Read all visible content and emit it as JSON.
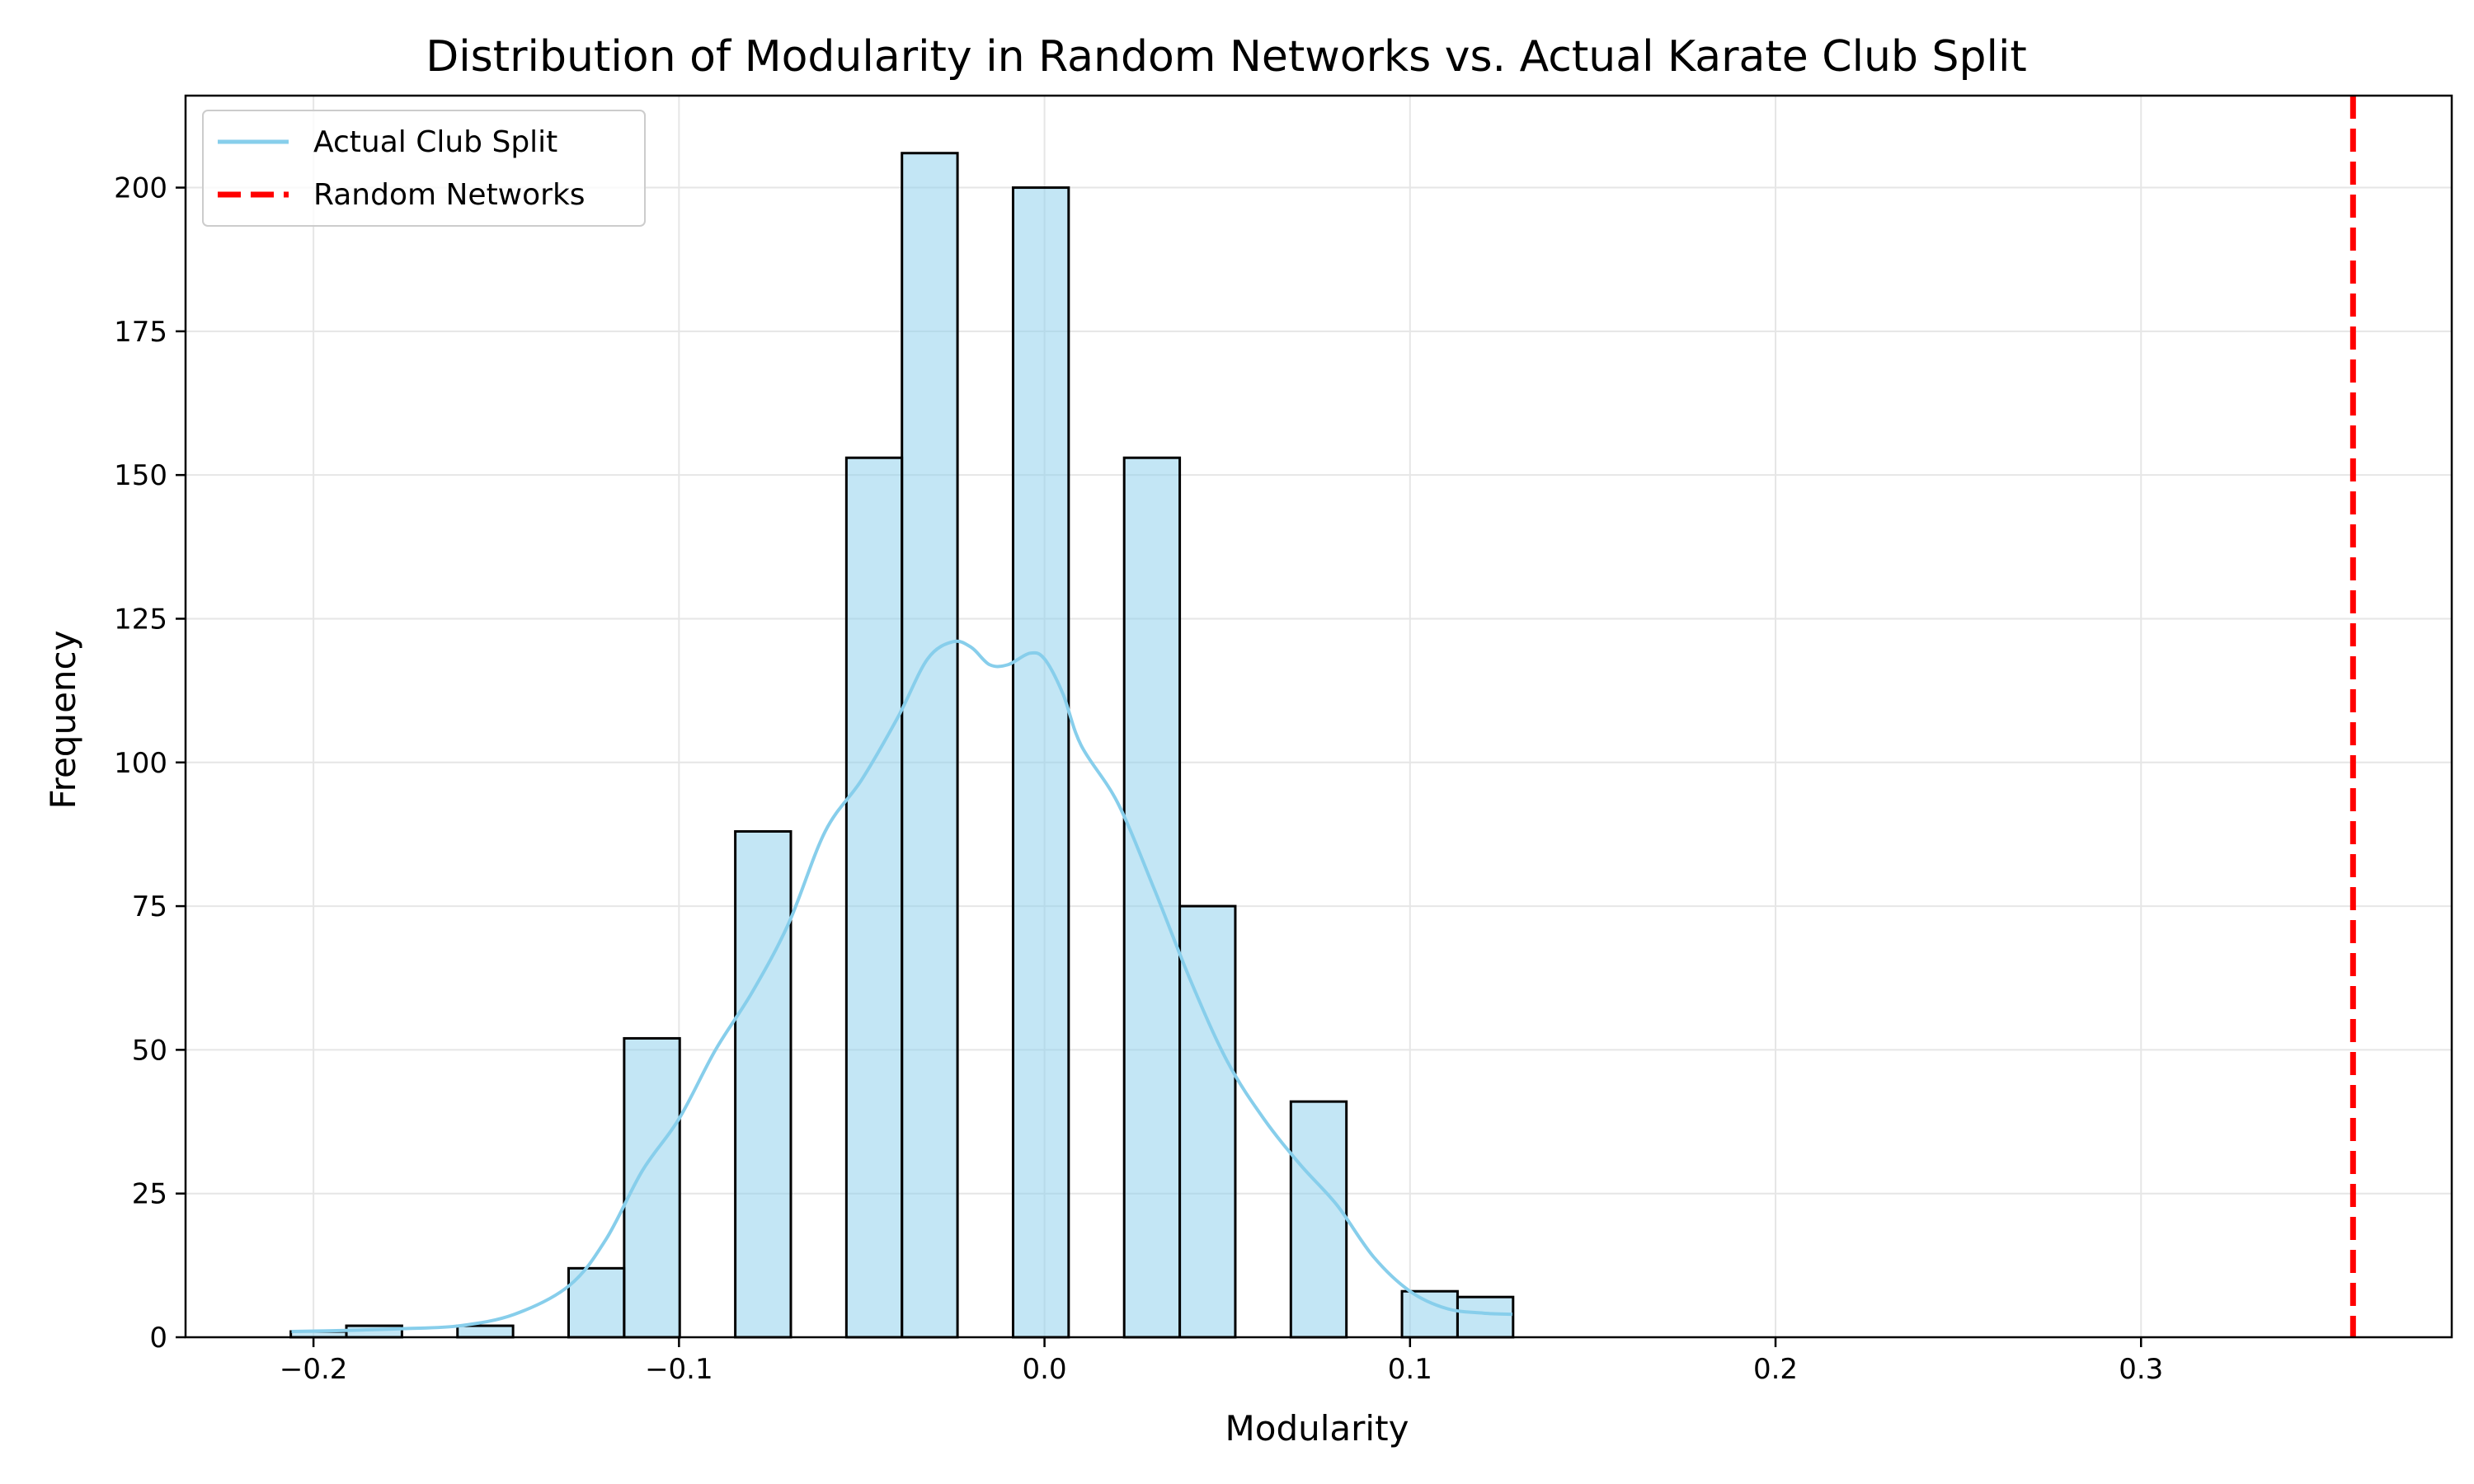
{
  "chart_data": {
    "type": "bar",
    "title": "Distribution of Modularity in Random Networks vs. Actual Karate Club Split",
    "xlabel": "Modularity",
    "ylabel": "Frequency",
    "xlim": [
      -0.235,
      0.385
    ],
    "ylim": [
      0,
      216
    ],
    "x_ticks": [
      -0.2,
      -0.1,
      0.0,
      0.1,
      0.2,
      0.3
    ],
    "x_tick_labels": [
      "−0.2",
      "−0.1",
      "0.0",
      "0.1",
      "0.2",
      "0.3"
    ],
    "y_ticks": [
      0,
      25,
      50,
      75,
      100,
      125,
      150,
      175,
      200
    ],
    "y_tick_labels": [
      "0",
      "25",
      "50",
      "75",
      "100",
      "125",
      "150",
      "175",
      "200"
    ],
    "grid": true,
    "legend_position": "top-left",
    "bin_width": 0.0152,
    "bins": [
      {
        "x0": -0.2062,
        "x1": -0.191,
        "count": 1
      },
      {
        "x0": -0.191,
        "x1": -0.1758,
        "count": 2
      },
      {
        "x0": -0.1758,
        "x1": -0.1606,
        "count": 0
      },
      {
        "x0": -0.1606,
        "x1": -0.1454,
        "count": 2
      },
      {
        "x0": -0.1454,
        "x1": -0.1302,
        "count": 0
      },
      {
        "x0": -0.1302,
        "x1": -0.115,
        "count": 12
      },
      {
        "x0": -0.115,
        "x1": -0.0998,
        "count": 52
      },
      {
        "x0": -0.0998,
        "x1": -0.0846,
        "count": 0
      },
      {
        "x0": -0.0846,
        "x1": -0.0694,
        "count": 88
      },
      {
        "x0": -0.0694,
        "x1": -0.0542,
        "count": 0
      },
      {
        "x0": -0.0542,
        "x1": -0.039,
        "count": 153
      },
      {
        "x0": -0.039,
        "x1": -0.0238,
        "count": 206
      },
      {
        "x0": -0.0238,
        "x1": -0.0086,
        "count": 0
      },
      {
        "x0": -0.0086,
        "x1": 0.0066,
        "count": 200
      },
      {
        "x0": 0.0066,
        "x1": 0.0218,
        "count": 0
      },
      {
        "x0": 0.0218,
        "x1": 0.037,
        "count": 153
      },
      {
        "x0": 0.037,
        "x1": 0.0522,
        "count": 75
      },
      {
        "x0": 0.0522,
        "x1": 0.0674,
        "count": 0
      },
      {
        "x0": 0.0674,
        "x1": 0.0826,
        "count": 41
      },
      {
        "x0": 0.0826,
        "x1": 0.0978,
        "count": 0
      },
      {
        "x0": 0.0978,
        "x1": 0.113,
        "count": 8
      },
      {
        "x0": 0.113,
        "x1": 0.1282,
        "count": 7
      }
    ],
    "kde": {
      "name": "Actual Club Split",
      "x": [
        -0.206,
        -0.19,
        -0.175,
        -0.16,
        -0.145,
        -0.13,
        -0.12,
        -0.11,
        -0.1,
        -0.09,
        -0.08,
        -0.07,
        -0.06,
        -0.05,
        -0.04,
        -0.032,
        -0.025,
        -0.02,
        -0.015,
        -0.01,
        -0.004,
        0.0,
        0.005,
        0.01,
        0.02,
        0.03,
        0.04,
        0.05,
        0.06,
        0.07,
        0.08,
        0.09,
        0.1,
        0.11,
        0.12,
        0.128
      ],
      "y": [
        1,
        1.2,
        1.5,
        2,
        4,
        9,
        17,
        29,
        38,
        50,
        60,
        72,
        88,
        97,
        108,
        118,
        121,
        120,
        117,
        117,
        119,
        118,
        112,
        103,
        93,
        78,
        62,
        48,
        38,
        30,
        23,
        14,
        8,
        5,
        4.2,
        4
      ]
    },
    "reference_line": {
      "name": "Random Networks",
      "x": 0.358,
      "style": "dashed"
    },
    "colors": {
      "bar_fill": "#87ceeb",
      "bar_fill_opacity": 0.5,
      "bar_edge": "#000000",
      "kde_line": "#87ceeb",
      "reference_line": "#ff0000",
      "grid": "#e6e6e6"
    }
  }
}
